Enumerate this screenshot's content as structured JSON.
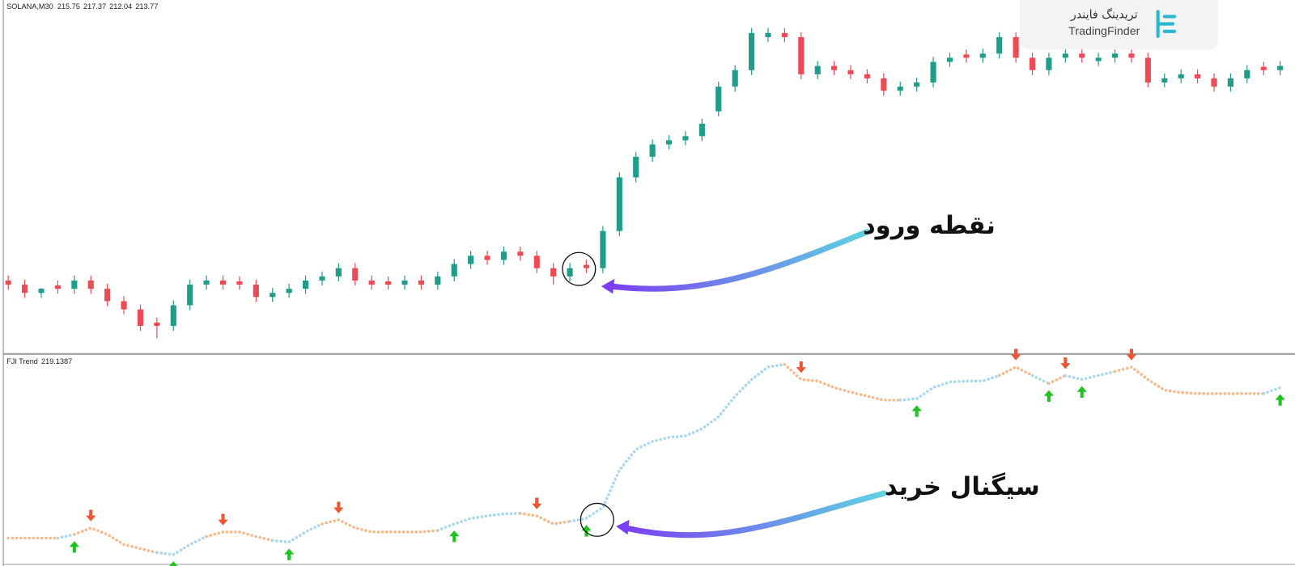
{
  "chart_data": [
    {
      "type": "candlestick",
      "title": "SOLANA,M30",
      "title_values": [
        215.75,
        217.37,
        212.04,
        213.77
      ],
      "open": [
        188.5,
        188.0,
        187.0,
        187.9,
        187.5,
        188.5,
        187.5,
        186.0,
        185.0,
        183.4,
        183.0,
        185.5,
        188.0,
        188.5,
        188.4,
        188.0,
        186.5,
        187.0,
        187.5,
        188.5,
        189.0,
        190.0,
        188.5,
        188.4,
        188.0,
        188.5,
        188.0,
        189.0,
        190.5,
        191.5,
        191.0,
        192.0,
        191.5,
        190.0,
        189.0,
        190.4,
        190.0,
        194.5,
        201.0,
        203.5,
        205.0,
        205.5,
        206.0,
        209.0,
        212.0,
        214.0,
        218.0,
        218.5,
        218.0,
        213.5,
        214.5,
        214.0,
        213.5,
        213.0,
        211.5,
        212.0,
        212.5,
        215.0,
        215.9,
        215.5,
        216.0,
        218.0,
        215.5,
        214.0,
        215.5,
        216.0,
        215.1,
        215.5,
        216.0,
        215.5,
        212.5,
        213.0,
        213.5,
        213.0,
        212.0,
        213.0,
        214.4,
        214.0
      ],
      "high": [
        189.1,
        188.6,
        187.6,
        188.5,
        189.1,
        189.1,
        188.1,
        186.6,
        185.6,
        184.0,
        186.1,
        188.6,
        189.1,
        189.1,
        189.0,
        188.6,
        187.6,
        188.1,
        189.1,
        189.6,
        190.6,
        190.6,
        189.1,
        189.0,
        189.1,
        189.1,
        189.6,
        191.1,
        192.1,
        192.1,
        192.6,
        192.6,
        192.1,
        190.6,
        190.6,
        191.0,
        195.1,
        201.6,
        204.1,
        205.6,
        206.1,
        206.6,
        208.1,
        212.6,
        214.6,
        219.1,
        219.1,
        219.1,
        218.6,
        215.1,
        215.1,
        214.6,
        214.1,
        213.6,
        212.6,
        213.1,
        215.6,
        216.1,
        216.5,
        216.6,
        218.6,
        218.6,
        216.1,
        216.1,
        216.6,
        216.6,
        216.1,
        216.6,
        216.6,
        216.1,
        213.6,
        214.1,
        214.1,
        213.6,
        213.6,
        214.6,
        215.0,
        215.1
      ],
      "low": [
        187.4,
        186.4,
        186.4,
        186.9,
        186.9,
        186.9,
        185.4,
        184.4,
        182.4,
        181.5,
        182.4,
        184.9,
        187.4,
        187.4,
        187.4,
        185.9,
        185.9,
        186.4,
        186.9,
        187.9,
        188.4,
        187.9,
        187.4,
        187.4,
        187.4,
        187.4,
        187.4,
        188.4,
        189.9,
        190.4,
        190.4,
        190.9,
        189.4,
        188.0,
        188.4,
        189.4,
        189.4,
        193.9,
        200.4,
        202.9,
        204.4,
        204.9,
        205.4,
        208.4,
        211.4,
        213.4,
        217.4,
        217.4,
        212.9,
        212.9,
        213.4,
        212.9,
        212.4,
        210.9,
        210.9,
        211.4,
        211.9,
        214.4,
        214.9,
        214.9,
        215.4,
        214.9,
        213.4,
        213.4,
        214.9,
        214.9,
        214.5,
        214.9,
        214.9,
        211.9,
        211.9,
        212.4,
        212.4,
        211.4,
        211.4,
        212.4,
        213.4,
        213.4
      ],
      "close": [
        188.0,
        187.0,
        187.5,
        187.5,
        188.5,
        187.5,
        186.0,
        185.0,
        183.0,
        183.0,
        185.5,
        188.0,
        188.5,
        188.0,
        188.0,
        186.5,
        187.0,
        187.5,
        188.5,
        189.0,
        190.0,
        188.5,
        188.0,
        188.0,
        188.5,
        188.0,
        189.0,
        190.5,
        191.5,
        191.0,
        192.0,
        191.5,
        190.0,
        189.0,
        190.0,
        190.0,
        194.5,
        201.0,
        203.5,
        205.0,
        205.5,
        206.0,
        207.5,
        212.0,
        214.0,
        218.5,
        218.5,
        218.0,
        213.5,
        214.5,
        214.0,
        213.5,
        213.0,
        211.5,
        212.0,
        212.5,
        215.0,
        215.5,
        215.5,
        216.0,
        218.0,
        215.5,
        214.0,
        215.5,
        216.0,
        215.5,
        215.5,
        216.0,
        215.5,
        212.5,
        213.0,
        213.5,
        213.0,
        212.0,
        213.0,
        214.0,
        214.0,
        214.5
      ],
      "ylim": [
        180,
        222
      ],
      "up_color": "#1e9e8a",
      "down_color": "#ec4b55"
    },
    {
      "type": "line",
      "title": "FJI Trend",
      "title_value": 219.1387,
      "values": [
        187.4,
        187.4,
        187.4,
        187.4,
        188.1,
        189.4,
        188.1,
        186.1,
        185.3,
        184.5,
        184.1,
        186.1,
        187.7,
        188.6,
        188.6,
        187.7,
        186.9,
        186.6,
        188.6,
        190.2,
        191.0,
        189.4,
        188.6,
        188.6,
        188.6,
        188.6,
        188.9,
        190.2,
        191.3,
        191.8,
        192.2,
        192.3,
        191.8,
        190.2,
        190.7,
        191.3,
        193.5,
        200.9,
        205.0,
        206.6,
        207.4,
        207.7,
        209.1,
        211.5,
        215.6,
        218.9,
        221.4,
        221.9,
        218.9,
        218.6,
        217.3,
        216.4,
        215.6,
        214.8,
        214.8,
        215.1,
        217.3,
        218.4,
        218.6,
        218.6,
        219.7,
        221.4,
        219.7,
        218.1,
        219.7,
        218.9,
        219.7,
        220.5,
        221.4,
        218.9,
        216.8,
        216.3,
        216.1,
        216.1,
        216.1,
        216.1,
        216.1,
        217.3
      ],
      "trend": [
        "down",
        "down",
        "down",
        "down",
        "up",
        "down",
        "down",
        "down",
        "down",
        "down",
        "up",
        "up",
        "up",
        "down",
        "down",
        "down",
        "down",
        "up",
        "up",
        "up",
        "down",
        "down",
        "down",
        "down",
        "down",
        "down",
        "down",
        "up",
        "up",
        "up",
        "up",
        "up",
        "down",
        "down",
        "down",
        "up",
        "up",
        "up",
        "up",
        "up",
        "up",
        "up",
        "up",
        "up",
        "up",
        "up",
        "up",
        "up",
        "down",
        "down",
        "down",
        "down",
        "down",
        "down",
        "down",
        "up",
        "up",
        "up",
        "up",
        "up",
        "up",
        "down",
        "down",
        "up",
        "down",
        "up",
        "up",
        "up",
        "down",
        "down",
        "down",
        "down",
        "down",
        "down",
        "down",
        "down",
        "down",
        "up"
      ],
      "line_colors": {
        "up": "#a8d8ee",
        "down": "#f6b98a"
      },
      "signal_colors": {
        "up": "#1ec41e",
        "down": "#ee5535"
      },
      "ylim": [
        182,
        223
      ]
    }
  ],
  "annotations": {
    "entry_label": "نقطه ورود",
    "signal_label": "سیگنال خرید"
  },
  "logo": {
    "fa": "تریدینگ فایندر",
    "en": "TradingFinder"
  }
}
